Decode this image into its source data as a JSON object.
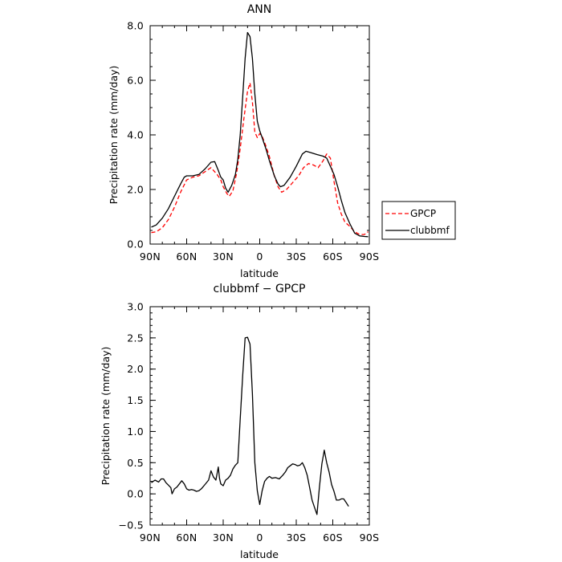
{
  "chart_data": [
    {
      "type": "line",
      "title": "ANN",
      "xlabel": "latitude",
      "ylabel": "Precipitation rate (mm/day)",
      "xlim": [
        90,
        -90
      ],
      "ylim": [
        0,
        8
      ],
      "x_ticks": [
        90,
        60,
        30,
        0,
        -30,
        -60,
        -90
      ],
      "x_tick_labels": [
        "90N",
        "60N",
        "30N",
        "0",
        "30S",
        "60S",
        "90S"
      ],
      "y_ticks": [
        0,
        2,
        4,
        6,
        8
      ],
      "y_tick_labels": [
        "0.0",
        "2.0",
        "4.0",
        "6.0",
        "8.0"
      ],
      "legend_position": "right",
      "series": [
        {
          "name": "GPCP",
          "color": "#ff0000",
          "dash": "dashed",
          "points": [
            [
              89,
              0.42
            ],
            [
              85,
              0.45
            ],
            [
              80,
              0.6
            ],
            [
              75,
              0.9
            ],
            [
              70,
              1.35
            ],
            [
              65,
              1.9
            ],
            [
              60,
              2.35
            ],
            [
              55,
              2.45
            ],
            [
              50,
              2.5
            ],
            [
              45,
              2.65
            ],
            [
              40,
              2.8
            ],
            [
              35,
              2.55
            ],
            [
              32,
              2.35
            ],
            [
              30,
              2.1
            ],
            [
              27,
              1.85
            ],
            [
              25,
              1.75
            ],
            [
              22,
              1.95
            ],
            [
              19,
              2.6
            ],
            [
              16,
              3.5
            ],
            [
              13,
              4.6
            ],
            [
              10,
              5.6
            ],
            [
              8,
              5.9
            ],
            [
              6,
              5.2
            ],
            [
              4,
              4.1
            ],
            [
              2,
              3.9
            ],
            [
              0,
              4.05
            ],
            [
              -2,
              3.95
            ],
            [
              -5,
              3.6
            ],
            [
              -8,
              3.2
            ],
            [
              -12,
              2.5
            ],
            [
              -15,
              2.1
            ],
            [
              -18,
              1.9
            ],
            [
              -22,
              2.0
            ],
            [
              -27,
              2.25
            ],
            [
              -32,
              2.5
            ],
            [
              -36,
              2.8
            ],
            [
              -40,
              2.95
            ],
            [
              -44,
              2.9
            ],
            [
              -48,
              2.8
            ],
            [
              -52,
              3.05
            ],
            [
              -55,
              3.3
            ],
            [
              -58,
              3.15
            ],
            [
              -61,
              2.3
            ],
            [
              -64,
              1.5
            ],
            [
              -67,
              1.1
            ],
            [
              -70,
              0.8
            ],
            [
              -74,
              0.65
            ],
            [
              -78,
              0.45
            ],
            [
              -82,
              0.35
            ],
            [
              -86,
              0.35
            ],
            [
              -89,
              0.45
            ]
          ]
        },
        {
          "name": "clubbmf",
          "color": "#000000",
          "dash": "solid",
          "points": [
            [
              89,
              0.62
            ],
            [
              85,
              0.7
            ],
            [
              80,
              0.95
            ],
            [
              75,
              1.3
            ],
            [
              70,
              1.75
            ],
            [
              65,
              2.2
            ],
            [
              62,
              2.45
            ],
            [
              60,
              2.5
            ],
            [
              55,
              2.5
            ],
            [
              50,
              2.55
            ],
            [
              45,
              2.75
            ],
            [
              40,
              3.0
            ],
            [
              37,
              3.02
            ],
            [
              34,
              2.7
            ],
            [
              32,
              2.45
            ],
            [
              30,
              2.35
            ],
            [
              28,
              2.05
            ],
            [
              26,
              1.9
            ],
            [
              23,
              2.15
            ],
            [
              20,
              2.55
            ],
            [
              18,
              3.1
            ],
            [
              16,
              4.0
            ],
            [
              14,
              5.4
            ],
            [
              12,
              6.8
            ],
            [
              10,
              7.75
            ],
            [
              8,
              7.6
            ],
            [
              6,
              6.8
            ],
            [
              4,
              5.5
            ],
            [
              2,
              4.5
            ],
            [
              0,
              4.15
            ],
            [
              -2,
              3.9
            ],
            [
              -5,
              3.5
            ],
            [
              -8,
              3.05
            ],
            [
              -12,
              2.5
            ],
            [
              -15,
              2.2
            ],
            [
              -17,
              2.1
            ],
            [
              -20,
              2.15
            ],
            [
              -25,
              2.45
            ],
            [
              -30,
              2.85
            ],
            [
              -35,
              3.3
            ],
            [
              -38,
              3.4
            ],
            [
              -42,
              3.35
            ],
            [
              -47,
              3.28
            ],
            [
              -52,
              3.22
            ],
            [
              -55,
              3.15
            ],
            [
              -58,
              2.85
            ],
            [
              -61,
              2.55
            ],
            [
              -64,
              2.1
            ],
            [
              -67,
              1.6
            ],
            [
              -70,
              1.15
            ],
            [
              -74,
              0.75
            ],
            [
              -78,
              0.4
            ],
            [
              -82,
              0.3
            ],
            [
              -86,
              0.28
            ],
            [
              -89,
              0.27
            ]
          ]
        }
      ]
    },
    {
      "type": "line",
      "title": "clubbmf − GPCP",
      "xlabel": "latitude",
      "ylabel": "Precipitation rate (mm/day)",
      "xlim": [
        90,
        -90
      ],
      "ylim": [
        -0.5,
        3.0
      ],
      "x_ticks": [
        90,
        60,
        30,
        0,
        -30,
        -60,
        -90
      ],
      "x_tick_labels": [
        "90N",
        "60N",
        "30N",
        "0",
        "30S",
        "60S",
        "90S"
      ],
      "y_ticks": [
        -0.5,
        0,
        0.5,
        1.0,
        1.5,
        2.0,
        2.5,
        3.0
      ],
      "y_tick_labels": [
        "−0.5",
        "0.0",
        "0.5",
        "1.0",
        "1.5",
        "2.0",
        "2.5",
        "3.0"
      ],
      "series": [
        {
          "color": "#000000",
          "dash": "solid",
          "points": [
            [
              89,
              0.18
            ],
            [
              86,
              0.22
            ],
            [
              83,
              0.19
            ],
            [
              81,
              0.24
            ],
            [
              79,
              0.24
            ],
            [
              77,
              0.18
            ],
            [
              75,
              0.14
            ],
            [
              73,
              0.1
            ],
            [
              72,
              0.0
            ],
            [
              70,
              0.08
            ],
            [
              68,
              0.11
            ],
            [
              66,
              0.16
            ],
            [
              64,
              0.21
            ],
            [
              62,
              0.16
            ],
            [
              60,
              0.08
            ],
            [
              58,
              0.06
            ],
            [
              56,
              0.07
            ],
            [
              54,
              0.06
            ],
            [
              52,
              0.04
            ],
            [
              50,
              0.05
            ],
            [
              48,
              0.08
            ],
            [
              45,
              0.15
            ],
            [
              42,
              0.22
            ],
            [
              40,
              0.37
            ],
            [
              38,
              0.27
            ],
            [
              36,
              0.22
            ],
            [
              34,
              0.43
            ],
            [
              33,
              0.25
            ],
            [
              32,
              0.16
            ],
            [
              30,
              0.13
            ],
            [
              28,
              0.22
            ],
            [
              26,
              0.25
            ],
            [
              24,
              0.3
            ],
            [
              22,
              0.4
            ],
            [
              20,
              0.46
            ],
            [
              18,
              0.5
            ],
            [
              16,
              1.2
            ],
            [
              14,
              1.9
            ],
            [
              12,
              2.5
            ],
            [
              10,
              2.51
            ],
            [
              8,
              2.4
            ],
            [
              6,
              1.6
            ],
            [
              4,
              0.5
            ],
            [
              2,
              0.05
            ],
            [
              0,
              -0.17
            ],
            [
              -2,
              0.05
            ],
            [
              -4,
              0.2
            ],
            [
              -6,
              0.25
            ],
            [
              -8,
              0.28
            ],
            [
              -10,
              0.25
            ],
            [
              -13,
              0.26
            ],
            [
              -16,
              0.24
            ],
            [
              -19,
              0.3
            ],
            [
              -21,
              0.35
            ],
            [
              -23,
              0.42
            ],
            [
              -25,
              0.45
            ],
            [
              -27,
              0.48
            ],
            [
              -29,
              0.47
            ],
            [
              -31,
              0.45
            ],
            [
              -33,
              0.46
            ],
            [
              -35,
              0.5
            ],
            [
              -37,
              0.42
            ],
            [
              -39,
              0.3
            ],
            [
              -41,
              0.1
            ],
            [
              -43,
              -0.1
            ],
            [
              -45,
              -0.22
            ],
            [
              -47,
              -0.33
            ],
            [
              -49,
              0.1
            ],
            [
              -51,
              0.48
            ],
            [
              -53,
              0.7
            ],
            [
              -55,
              0.5
            ],
            [
              -57,
              0.35
            ],
            [
              -59,
              0.15
            ],
            [
              -61,
              0.04
            ],
            [
              -63,
              -0.1
            ],
            [
              -65,
              -0.1
            ],
            [
              -67,
              -0.08
            ],
            [
              -69,
              -0.08
            ],
            [
              -71,
              -0.14
            ],
            [
              -73,
              -0.2
            ]
          ]
        }
      ]
    }
  ]
}
